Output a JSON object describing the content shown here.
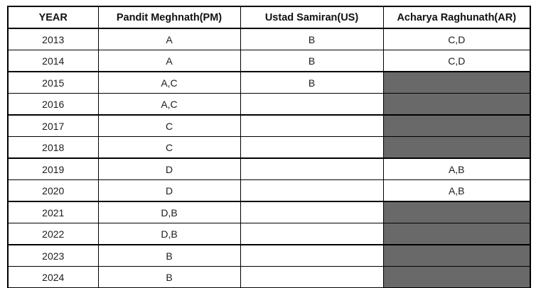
{
  "table": {
    "columns": [
      {
        "key": "year",
        "label": "YEAR"
      },
      {
        "key": "pm",
        "label": "Pandit Meghnath(PM)"
      },
      {
        "key": "us",
        "label": "Ustad Samiran(US)"
      },
      {
        "key": "ar",
        "label": "Acharya Raghunath(AR)"
      }
    ],
    "rows": [
      {
        "year": "2013",
        "pm": "A",
        "us": "B",
        "ar": "C,D",
        "ar_filled": false
      },
      {
        "year": "2014",
        "pm": "A",
        "us": "B",
        "ar": "C,D",
        "ar_filled": false
      },
      {
        "year": "2015",
        "pm": "A,C",
        "us": "B",
        "ar": "",
        "ar_filled": true
      },
      {
        "year": "2016",
        "pm": "A,C",
        "us": "",
        "ar": "",
        "ar_filled": true
      },
      {
        "year": "2017",
        "pm": "C",
        "us": "",
        "ar": "",
        "ar_filled": true
      },
      {
        "year": "2018",
        "pm": "C",
        "us": "",
        "ar": "",
        "ar_filled": true
      },
      {
        "year": "2019",
        "pm": "D",
        "us": "",
        "ar": "A,B",
        "ar_filled": false
      },
      {
        "year": "2020",
        "pm": "D",
        "us": "",
        "ar": "A,B",
        "ar_filled": false
      },
      {
        "year": "2021",
        "pm": "D,B",
        "us": "",
        "ar": "",
        "ar_filled": true
      },
      {
        "year": "2022",
        "pm": "D,B",
        "us": "",
        "ar": "",
        "ar_filled": true
      },
      {
        "year": "2023",
        "pm": "B",
        "us": "",
        "ar": "",
        "ar_filled": true
      },
      {
        "year": "2024",
        "pm": "B",
        "us": "",
        "ar": "",
        "ar_filled": true
      }
    ],
    "colors": {
      "filled_cell": "#696969",
      "border": "#000000",
      "text": "#1c1c1c"
    }
  },
  "chart_data": {
    "type": "table",
    "title": "",
    "categories": [
      "2013",
      "2014",
      "2015",
      "2016",
      "2017",
      "2018",
      "2019",
      "2020",
      "2021",
      "2022",
      "2023",
      "2024"
    ],
    "series": [
      {
        "name": "Pandit Meghnath(PM)",
        "values": [
          "A",
          "A",
          "A,C",
          "A,C",
          "C",
          "C",
          "D",
          "D",
          "D,B",
          "D,B",
          "B",
          "B"
        ]
      },
      {
        "name": "Ustad Samiran(US)",
        "values": [
          "B",
          "B",
          "B",
          "",
          "",
          "",
          "",
          "",
          "",
          "",
          "",
          ""
        ]
      },
      {
        "name": "Acharya Raghunath(AR)",
        "values": [
          "C,D",
          "C,D",
          null,
          null,
          null,
          null,
          "A,B",
          "A,B",
          null,
          null,
          null,
          null
        ]
      }
    ],
    "notes": "null values in Acharya Raghunath(AR) column are rendered as dark-gray shaded cells"
  }
}
